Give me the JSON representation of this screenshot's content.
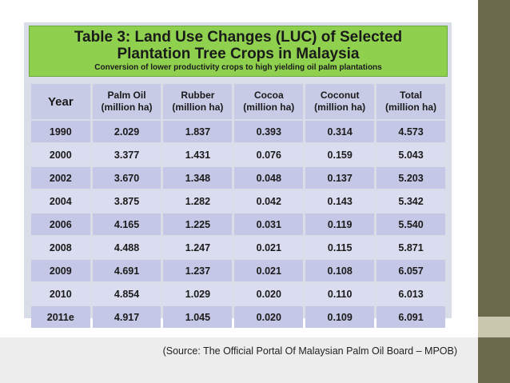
{
  "title": {
    "line1": "Table 3: Land Use Changes (LUC) of Selected",
    "line2": "Plantation Tree Crops in Malaysia",
    "subtitle": "Conversion of lower productivity crops to high yielding oil palm plantations"
  },
  "table": {
    "headers": [
      {
        "line1": "Year",
        "line2": ""
      },
      {
        "line1": "Palm Oil",
        "line2": "(million ha)"
      },
      {
        "line1": "Rubber",
        "line2": "(million ha)"
      },
      {
        "line1": "Cocoa",
        "line2": "(million ha)"
      },
      {
        "line1": "Coconut",
        "line2": "(million ha)"
      },
      {
        "line1": "Total",
        "line2": "(million ha)"
      }
    ],
    "rows": [
      [
        "1990",
        "2.029",
        "1.837",
        "0.393",
        "0.314",
        "4.573"
      ],
      [
        "2000",
        "3.377",
        "1.431",
        "0.076",
        "0.159",
        "5.043"
      ],
      [
        "2002",
        "3.670",
        "1.348",
        "0.048",
        "0.137",
        "5.203"
      ],
      [
        "2004",
        "3.875",
        "1.282",
        "0.042",
        "0.143",
        "5.342"
      ],
      [
        "2006",
        "4.165",
        "1.225",
        "0.031",
        "0.119",
        "5.540"
      ],
      [
        "2008",
        "4.488",
        "1.247",
        "0.021",
        "0.115",
        "5.871"
      ],
      [
        "2009",
        "4.691",
        "1.237",
        "0.021",
        "0.108",
        "6.057"
      ],
      [
        "2010",
        "4.854",
        "1.029",
        "0.020",
        "0.110",
        "6.013"
      ],
      [
        "2011e",
        "4.917",
        "1.045",
        "0.020",
        "0.109",
        "6.091"
      ]
    ]
  },
  "source": "(Source: The Official Portal Of Malaysian Palm Oil Board – MPOB)",
  "colors": {
    "title_bg": "#8fd14f",
    "header_bg": "#c7cbe6",
    "row_bg": "#c4c7e5",
    "row_alt_bg": "#dadcf0",
    "side_bar": "#6b6a4d"
  }
}
